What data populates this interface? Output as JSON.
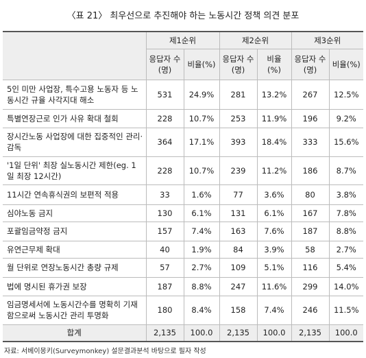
{
  "header": {
    "title": "〈표 21〉 최우선으로 추진해야 하는 노동시간 정책 의견 분포"
  },
  "table": {
    "groups": [
      "제1순위",
      "제2순위",
      "제3순위"
    ],
    "subheaders": [
      "응답자 수(명)",
      "비율(%)"
    ],
    "rows": [
      [
        "5인 미만 사업장, 특수고용 노동자 등 노동시간 규율 사각지대 해소",
        "531",
        "24.9%",
        "281",
        "13.2%",
        "267",
        "12.5%"
      ],
      [
        "특별연장근로 인가 사유 확대 철회",
        "228",
        "10.7%",
        "253",
        "11.9%",
        "196",
        "9.2%"
      ],
      [
        "장시간노동 사업장에 대한 집중적인 관리·감독",
        "364",
        "17.1%",
        "393",
        "18.4%",
        "333",
        "15.6%"
      ],
      [
        "'1일 단위' 최장 실노동시간 제한(eg. 1일 최장 12시간)",
        "228",
        "10.7%",
        "239",
        "11.2%",
        "186",
        "8.7%"
      ],
      [
        "11시간 연속휴식권의 보편적 적용",
        "33",
        "1.6%",
        "77",
        "3.6%",
        "80",
        "3.8%"
      ],
      [
        "심야노동 금지",
        "130",
        "6.1%",
        "131",
        "6.1%",
        "167",
        "7.8%"
      ],
      [
        "포괄임금약정 금지",
        "157",
        "7.4%",
        "163",
        "7.6%",
        "187",
        "8.8%"
      ],
      [
        "유연근무제 확대",
        "40",
        "1.9%",
        "84",
        "3.9%",
        "58",
        "2.7%"
      ],
      [
        "월 단위로 연장노동시간 총량 규제",
        "57",
        "2.7%",
        "109",
        "5.1%",
        "116",
        "5.4%"
      ],
      [
        "법에 명시된 휴가권 보장",
        "187",
        "8.8%",
        "247",
        "11.6%",
        "299",
        "14.0%"
      ],
      [
        "임금명세서에 노동시간수를 명확히 기재함으로써 노동시간 관리 투명화",
        "180",
        "8.4%",
        "158",
        "7.4%",
        "246",
        "11.5%"
      ]
    ],
    "total": [
      "합계",
      "2,135",
      "100.0",
      "2,135",
      "100.0",
      "2,135",
      "100.0"
    ]
  },
  "footer": {
    "source": "자료: 서베이몽키(Surveymonkey) 설문결과분석 바탕으로 필자 작성"
  }
}
